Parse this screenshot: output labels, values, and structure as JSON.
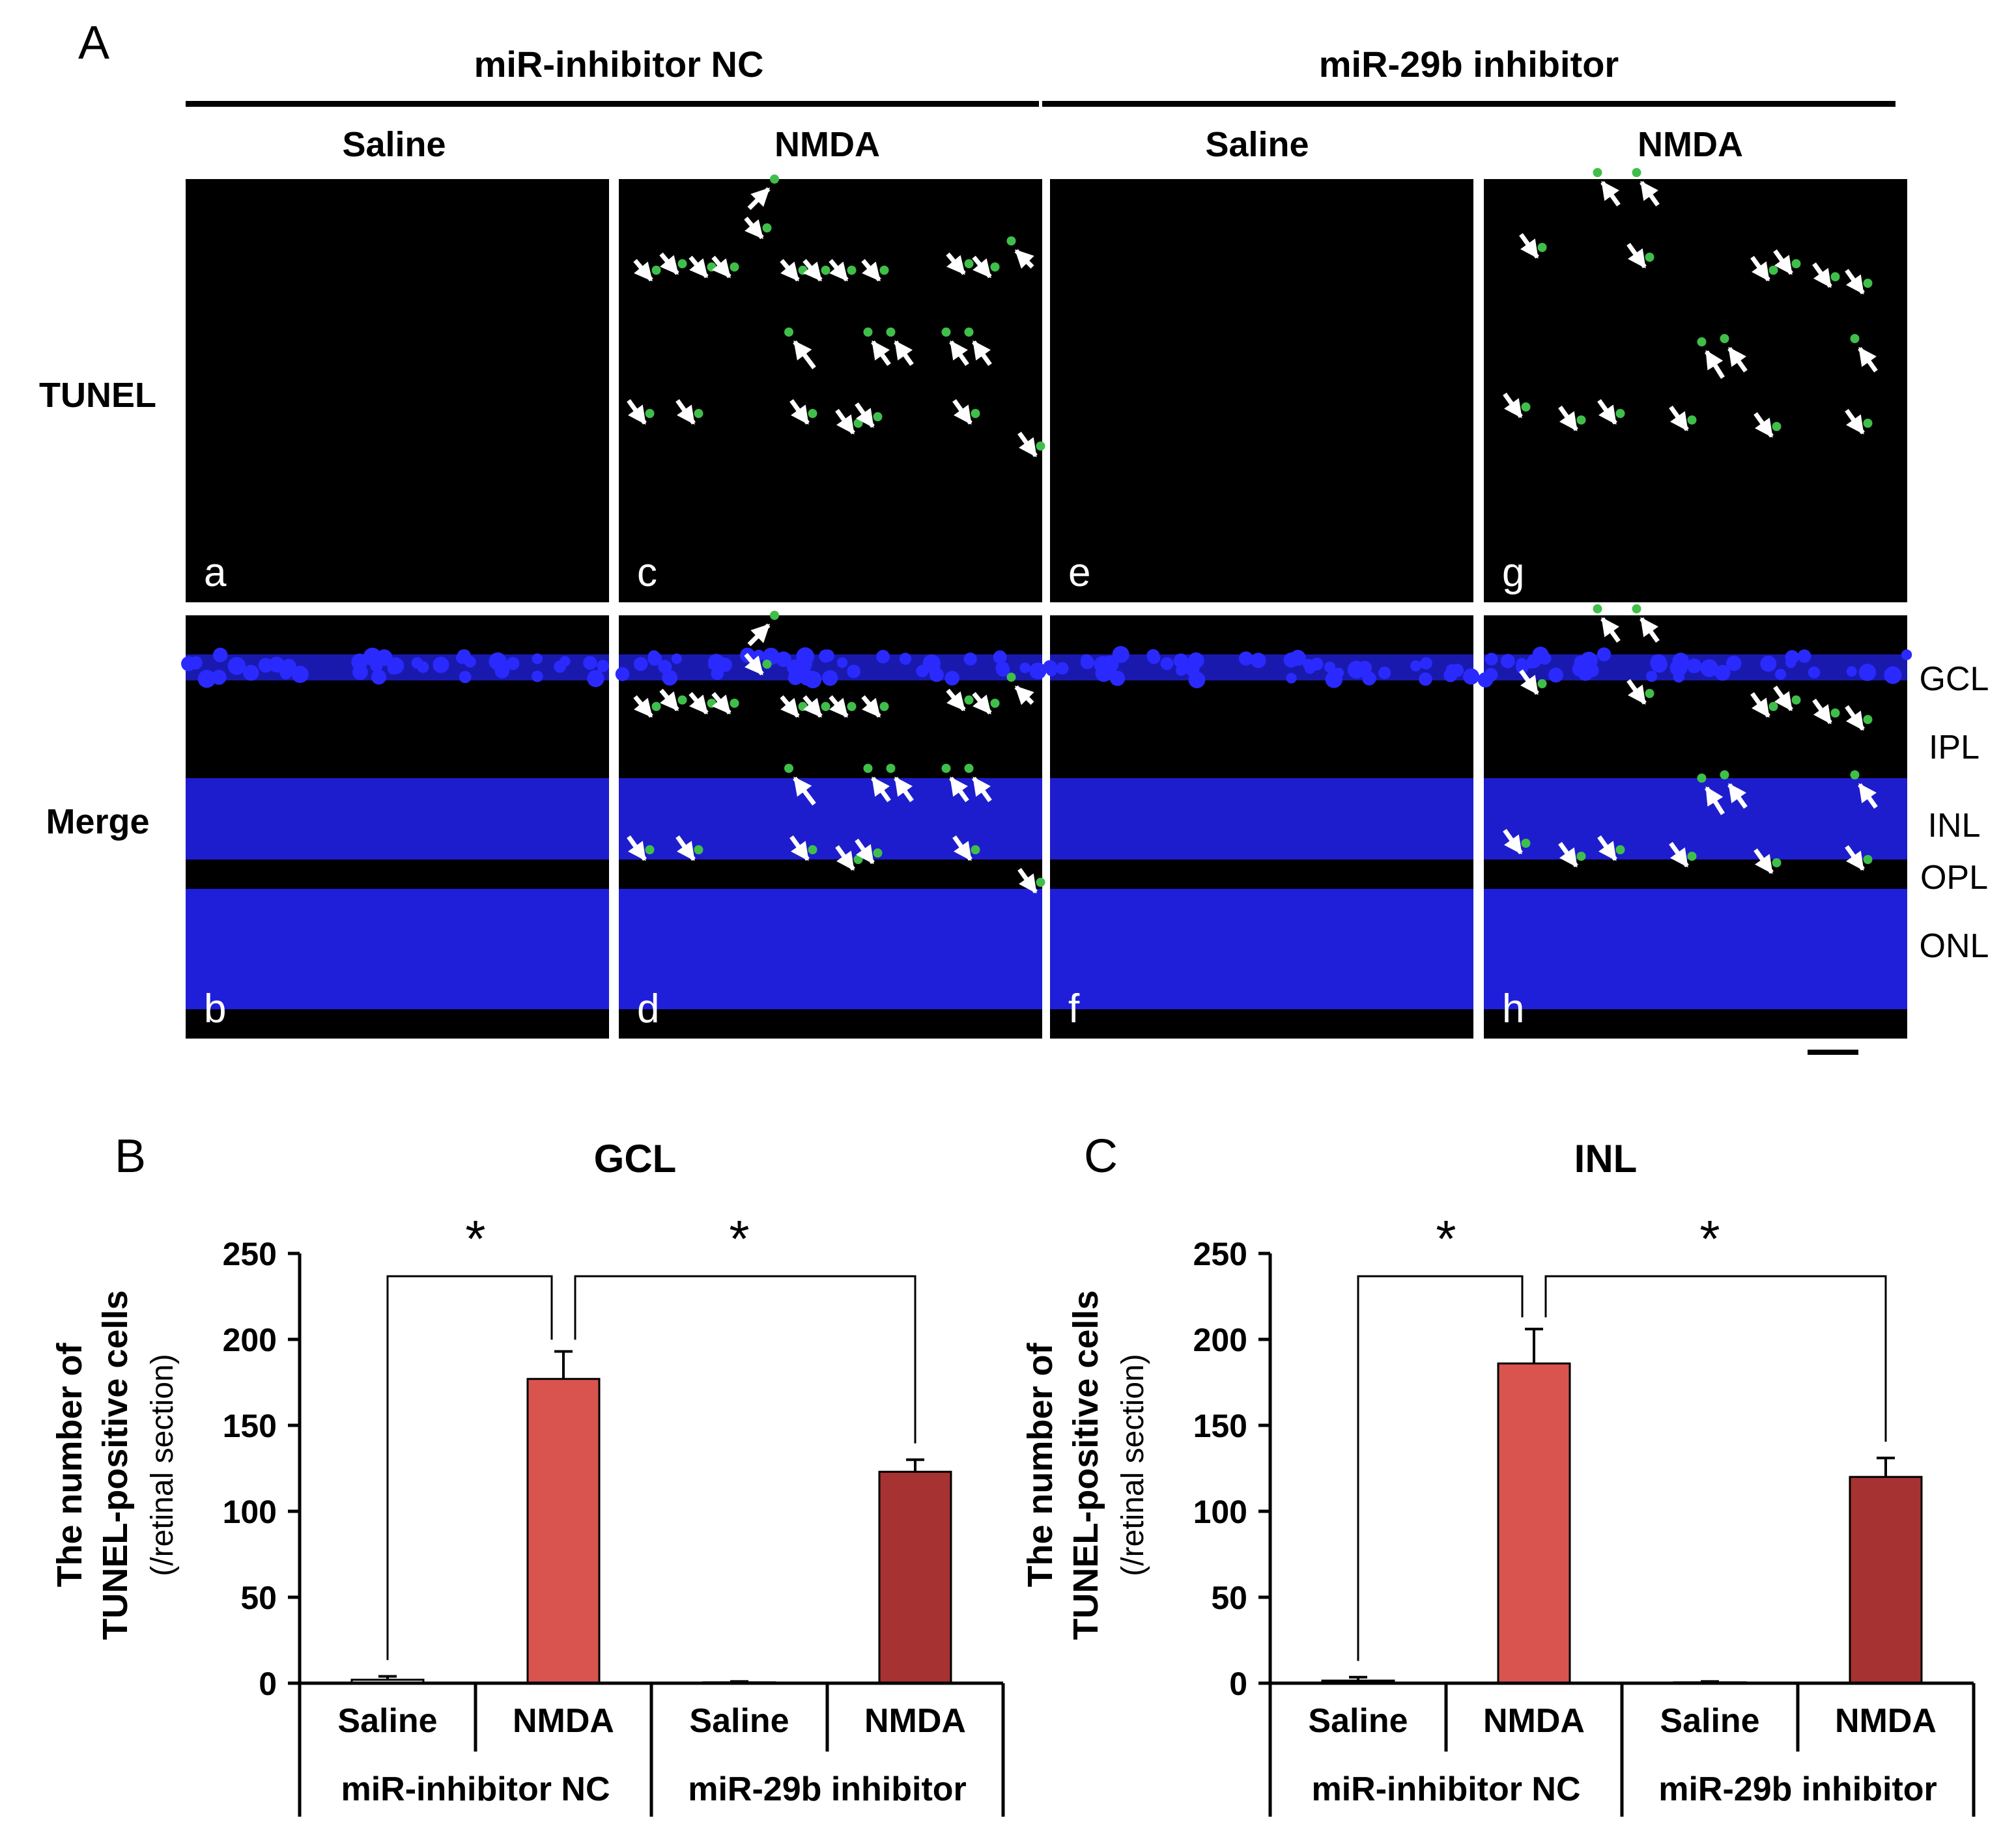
{
  "figure": {
    "panel_a_label": "A",
    "panel_b_label": "B",
    "panel_c_label": "C",
    "group1": "miR-inhibitor NC",
    "group2": "miR-29b inhibitor",
    "condition1": "Saline",
    "condition2": "NMDA",
    "row1": "TUNEL",
    "row2": "Merge",
    "micrograph_letters": [
      "a",
      "c",
      "e",
      "g",
      "b",
      "d",
      "f",
      "h"
    ],
    "layers": [
      "GCL",
      "IPL",
      "INL",
      "OPL",
      "ONL"
    ],
    "colors": {
      "bar_nc_nmda": "#d9534f",
      "bar_inh_nmda": "#a63232",
      "nucleus_blue": "#1f1fd9",
      "tunel_green": "#3fbf4a"
    }
  },
  "chart_data": [
    {
      "type": "bar",
      "title": "GCL",
      "ylabel_line1": "The number of",
      "ylabel_line2": "TUNEL-positive cells",
      "ylabel_line3": "(/retinal section)",
      "ylim": [
        0,
        250
      ],
      "yticks": [
        "0",
        "50",
        "100",
        "150",
        "200",
        "250"
      ],
      "categories": [
        "Saline",
        "NMDA",
        "Saline",
        "NMDA"
      ],
      "groups": [
        "miR-inhibitor NC",
        "miR-29b inhibitor"
      ],
      "values": [
        2,
        177,
        0.5,
        123
      ],
      "errors": [
        2,
        16,
        0.5,
        7
      ],
      "significance": "*"
    },
    {
      "type": "bar",
      "title": "INL",
      "ylabel_line1": "The number of",
      "ylabel_line2": "TUNEL-positive cells",
      "ylabel_line3": "(/retinal section)",
      "ylim": [
        0,
        250
      ],
      "yticks": [
        "0",
        "50",
        "100",
        "150",
        "200",
        "250"
      ],
      "categories": [
        "Saline",
        "NMDA",
        "Saline",
        "NMDA"
      ],
      "groups": [
        "miR-inhibitor NC",
        "miR-29b inhibitor"
      ],
      "values": [
        1.5,
        186,
        0.5,
        120
      ],
      "errors": [
        2,
        20,
        0.5,
        11
      ],
      "significance": "*"
    }
  ]
}
